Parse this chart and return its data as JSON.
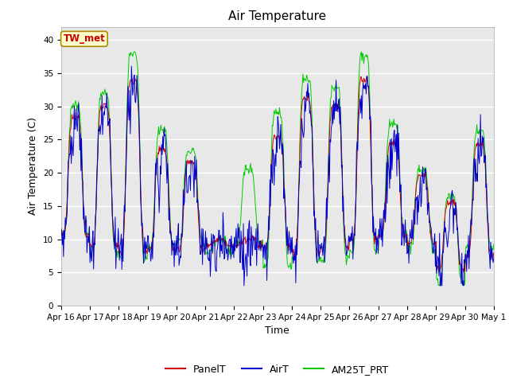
{
  "title": "Air Temperature",
  "ylabel": "Air Temperature (C)",
  "xlabel": "Time",
  "xlabels": [
    "Apr 16",
    "Apr 17",
    "Apr 18",
    "Apr 19",
    "Apr 20",
    "Apr 21",
    "Apr 22",
    "Apr 23",
    "Apr 24",
    "Apr 25",
    "Apr 26",
    "Apr 27",
    "Apr 28",
    "Apr 29",
    "Apr 30",
    "May 1"
  ],
  "ylim": [
    0,
    42
  ],
  "yticks": [
    0,
    5,
    10,
    15,
    20,
    25,
    30,
    35,
    40
  ],
  "panel_color": "#cc0000",
  "air_color": "#0000cc",
  "am25_color": "#00cc00",
  "bg_color": "#e8e8e8",
  "annotation_text": "TW_met",
  "annotation_color": "#cc0000",
  "annotation_bg": "#ffffcc",
  "legend_labels": [
    "PanelT",
    "AirT",
    "AM25T_PRT"
  ],
  "day_peaks_panel": [
    29,
    31,
    35,
    24,
    22,
    10,
    10,
    26,
    32,
    31,
    35,
    25,
    20,
    16,
    25,
    8
  ],
  "day_mins_panel": [
    10,
    8,
    7,
    8,
    8,
    9,
    9,
    8,
    7,
    8,
    9,
    10,
    9,
    5,
    7,
    7
  ],
  "day_peaks_am25": [
    31,
    33,
    39,
    27,
    24,
    10,
    21,
    30,
    35,
    34,
    39,
    28,
    21,
    17,
    27,
    8
  ],
  "day_mins_am25": [
    10,
    7,
    6,
    8,
    9,
    8,
    9,
    5,
    6,
    6,
    7,
    10,
    8,
    3,
    8,
    7
  ],
  "n_per_day": 48,
  "n_days": 15
}
